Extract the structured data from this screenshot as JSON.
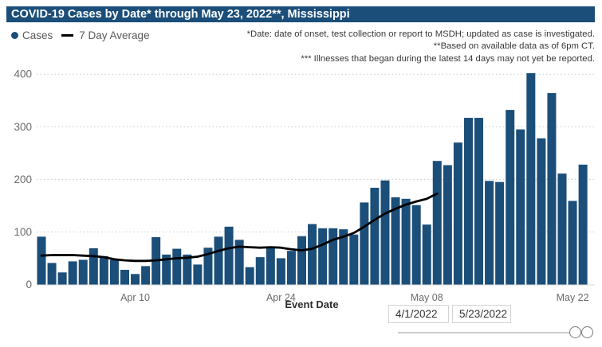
{
  "header": {
    "title": "COVID-19 Cases by Date* through May 23, 2022**, Mississippi"
  },
  "legend": {
    "cases_label": "Cases",
    "avg_label": "7 Day Average"
  },
  "annotations": [
    "*Date: date of onset, test collection or report to MSDH; updated as case is investigated.",
    "**Based on available data as of 6pm CT.",
    "*** Illnesses that began during the latest 14 days may not yet be reported."
  ],
  "controls": {
    "start_date_value": "4/1/2022",
    "end_date_value": "5/23/2022"
  },
  "colors": {
    "bar": "#1b4e79",
    "avg_line": "#000000",
    "title_bar_bg": "#1b4e79",
    "title_text": "#ffffff",
    "axis_text": "#6a6a6a",
    "legend_text": "#595959",
    "annotation_text": "#383838",
    "grid": "#c9c9c9",
    "axis_line": "#d9d9d9"
  },
  "chart_data": {
    "type": "bar",
    "title": "COVID-19 Cases by Date* through May 23, 2022**, Mississippi",
    "xlabel": "Event Date",
    "ylabel": "",
    "ylim": [
      0,
      400
    ],
    "yticks": [
      0,
      100,
      200,
      300,
      400
    ],
    "xticks": [
      "Apr 10",
      "Apr 24",
      "May 08",
      "May 22"
    ],
    "xtick_indices": [
      9,
      23,
      37,
      51
    ],
    "grid": "dotted-horizontal",
    "legend_position": "top-left",
    "categories": [
      "Apr 1",
      "Apr 2",
      "Apr 3",
      "Apr 4",
      "Apr 5",
      "Apr 6",
      "Apr 7",
      "Apr 8",
      "Apr 9",
      "Apr 10",
      "Apr 11",
      "Apr 12",
      "Apr 13",
      "Apr 14",
      "Apr 15",
      "Apr 16",
      "Apr 17",
      "Apr 18",
      "Apr 19",
      "Apr 20",
      "Apr 21",
      "Apr 22",
      "Apr 23",
      "Apr 24",
      "Apr 25",
      "Apr 26",
      "Apr 27",
      "Apr 28",
      "Apr 29",
      "Apr 30",
      "May 1",
      "May 2",
      "May 3",
      "May 4",
      "May 5",
      "May 6",
      "May 7",
      "May 8",
      "May 9",
      "May 10",
      "May 11",
      "May 12",
      "May 13",
      "May 14",
      "May 15",
      "May 16",
      "May 17",
      "May 18",
      "May 19",
      "May 20",
      "May 21",
      "May 22",
      "May 23"
    ],
    "series": [
      {
        "name": "Cases",
        "type": "bar",
        "color": "#1b4e79",
        "values": [
          91,
          41,
          23,
          44,
          47,
          69,
          54,
          47,
          28,
          20,
          35,
          90,
          57,
          68,
          57,
          38,
          70,
          91,
          110,
          85,
          33,
          52,
          70,
          50,
          64,
          92,
          115,
          107,
          107,
          105,
          95,
          156,
          184,
          198,
          166,
          163,
          151,
          114,
          235,
          227,
          270,
          317,
          317,
          197,
          195,
          332,
          295,
          402,
          278,
          364,
          211,
          159,
          228
        ]
      },
      {
        "name": "7 Day Average",
        "type": "line",
        "color": "#000000",
        "ends_at": "May 9",
        "values": [
          55,
          56,
          56,
          56,
          55,
          54,
          52,
          48,
          46,
          45,
          45,
          46,
          48,
          50,
          51,
          53,
          58,
          64,
          69,
          72,
          71,
          70,
          71,
          70,
          67,
          65,
          68,
          76,
          85,
          91,
          98,
          110,
          123,
          135,
          144,
          152,
          158,
          163,
          173
        ]
      }
    ]
  }
}
